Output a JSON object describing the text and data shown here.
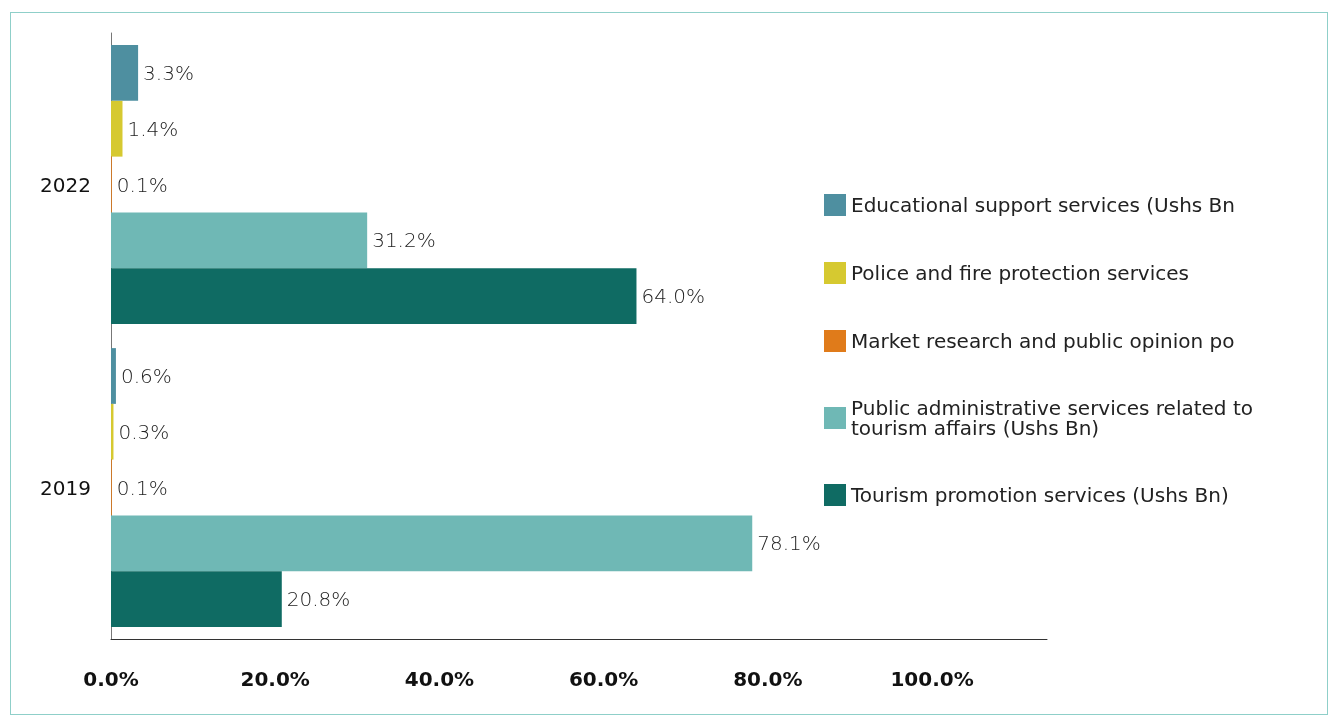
{
  "chart_data": {
    "type": "bar",
    "orientation": "horizontal",
    "categories": [
      "2022",
      "2019"
    ],
    "series": [
      {
        "name": "Educational support services (Ushs Bn",
        "color": "#4e8fa0",
        "values": [
          3.3,
          0.6
        ],
        "value_labels": [
          "3.3%",
          "0.6%"
        ]
      },
      {
        "name": "Police and fire protection services",
        "color": "#d6c930",
        "values": [
          1.4,
          0.3
        ],
        "value_labels": [
          "1.4%",
          "0.3%"
        ]
      },
      {
        "name": "Market research and public opinion po",
        "color": "#e07b1a",
        "values": [
          0.1,
          0.1
        ],
        "value_labels": [
          "0.1%",
          "0.1%"
        ]
      },
      {
        "name": "Public administrative services related to tourism affairs (Ushs Bn)",
        "color": "#6fb8b5",
        "values": [
          31.2,
          78.1
        ],
        "value_labels": [
          "31.2%",
          "78.1%"
        ]
      },
      {
        "name": "Tourism promotion services (Ushs Bn)",
        "color": "#0f6b63",
        "values": [
          64.0,
          20.8
        ],
        "value_labels": [
          "64.0%",
          "20.8%"
        ]
      }
    ],
    "xlim": [
      0,
      114
    ],
    "xticks": [
      {
        "value": 0,
        "label": "0.0%"
      },
      {
        "value": 20,
        "label": "20.0%"
      },
      {
        "value": 40,
        "label": "40.0%"
      },
      {
        "value": 60,
        "label": "60.0%"
      },
      {
        "value": 80,
        "label": "80.0%"
      },
      {
        "value": 100,
        "label": "100.0%"
      }
    ],
    "grid": false,
    "legend": "right"
  }
}
